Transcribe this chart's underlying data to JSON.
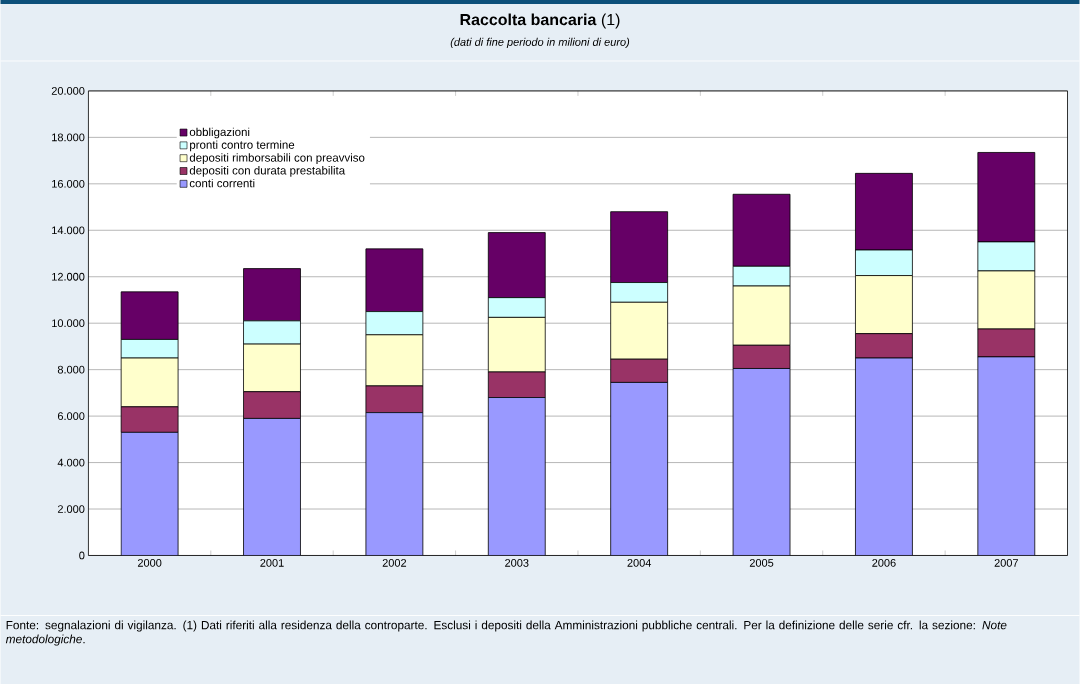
{
  "chart_data": {
    "type": "bar",
    "stacked": true,
    "title": "**Raccolta bancaria** (1)",
    "subtitle": "(dati di fine periodo in milioni di euro)",
    "categories": [
      "2000",
      "2001",
      "2002",
      "2003",
      "2004",
      "2005",
      "2006",
      "2007"
    ],
    "series": [
      {
        "name": "conti correnti",
        "color": "#9999ff",
        "values": [
          5300,
          5900,
          6150,
          6800,
          7450,
          8050,
          8500,
          8550
        ]
      },
      {
        "name": "depositi con durata prestabilita",
        "color": "#993366",
        "values": [
          1100,
          1150,
          1150,
          1100,
          1000,
          1000,
          1050,
          1200
        ]
      },
      {
        "name": "depositi rimborsabili con preavviso",
        "color": "#ffffcc",
        "values": [
          2100,
          2050,
          2200,
          2350,
          2450,
          2550,
          2500,
          2500
        ]
      },
      {
        "name": "pronti contro termine",
        "color": "#ccffff",
        "values": [
          800,
          1000,
          1000,
          850,
          850,
          850,
          1100,
          1250
        ]
      },
      {
        "name": "obbligazioni",
        "color": "#660066",
        "values": [
          2050,
          2250,
          2700,
          2800,
          3050,
          3100,
          3300,
          3850
        ]
      }
    ],
    "ylim": [
      0,
      20000
    ],
    "yticks": [
      0,
      {
        "value": 2000,
        "label": "2.000"
      },
      {
        "value": 4000,
        "label": "4.000"
      },
      {
        "value": 6000,
        "label": "6.000"
      },
      {
        "value": 8000,
        "label": "8.000"
      },
      {
        "value": 10000,
        "label": "10.000"
      },
      {
        "value": 12000,
        "label": "12.000"
      },
      {
        "value": 14000,
        "label": "14.000"
      },
      {
        "value": 16000,
        "label": "16.000"
      },
      {
        "value": 18000,
        "label": "18.000"
      },
      {
        "value": 20000,
        "label": "20.000"
      }
    ],
    "grid": "y",
    "legend": "top left",
    "annotations": [
      "Fonte: segnalazioni di vigilanza. (1) Dati riferiti alla residenza della controparte. Esclusi i depositi della Amministrazioni pubbliche centrali. Per la definizione delle serie cfr. la sezione: *Note metodologiche*."
    ]
  }
}
